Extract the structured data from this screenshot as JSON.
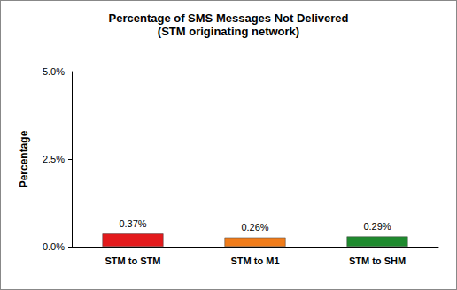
{
  "chart_data": {
    "type": "bar",
    "title": "Percentage of SMS Messages Not Delivered",
    "subtitle": "(STM originating network)",
    "ylabel": "Percentage",
    "categories": [
      "STM to STM",
      "STM to M1",
      "STM to SHM"
    ],
    "values": [
      0.37,
      0.26,
      0.29
    ],
    "value_labels": [
      "0.37%",
      "0.26%",
      "0.29%"
    ],
    "colors": [
      "#e31a1c",
      "#f07c1a",
      "#1e8a2e"
    ],
    "ylim": [
      0,
      5
    ],
    "yticks": [
      {
        "value": 0,
        "label": "0.0%"
      },
      {
        "value": 2.5,
        "label": "2.5%"
      },
      {
        "value": 5,
        "label": "5.0%"
      }
    ],
    "grid": false,
    "data_labels": true
  }
}
